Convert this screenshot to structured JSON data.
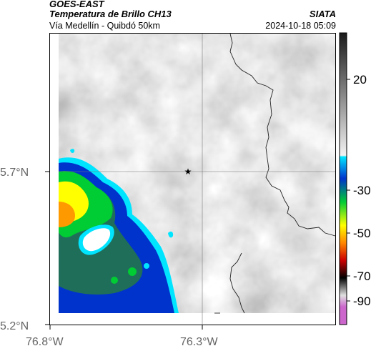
{
  "header": {
    "product": "GOES-EAST",
    "title": "Temperatura de Brillo CH13",
    "subtitle": "Vía Medellín - Quibdó 50km",
    "org": "SIATA",
    "timestamp": "2024-10-18 05:09"
  },
  "map": {
    "lat_labels": [
      "5.7°N",
      "5.2°N"
    ],
    "lon_labels": [
      "76.8°W",
      "76.3°W"
    ],
    "marker_icon": "star-icon",
    "grid": true
  },
  "colorbar": {
    "ticks": [
      "20",
      "-30",
      "-50",
      "-70",
      "-90"
    ],
    "colors": {
      "warm_top": "#1a1a1a",
      "warm_bottom": "#f2f2f2",
      "cyan": "#00e5ff",
      "blue": "#0033cc",
      "green": "#00cc33",
      "yellow": "#ffff00",
      "orange": "#ff8800",
      "red": "#cc0000",
      "black": "#000000",
      "magenta": "#cc66cc"
    }
  }
}
